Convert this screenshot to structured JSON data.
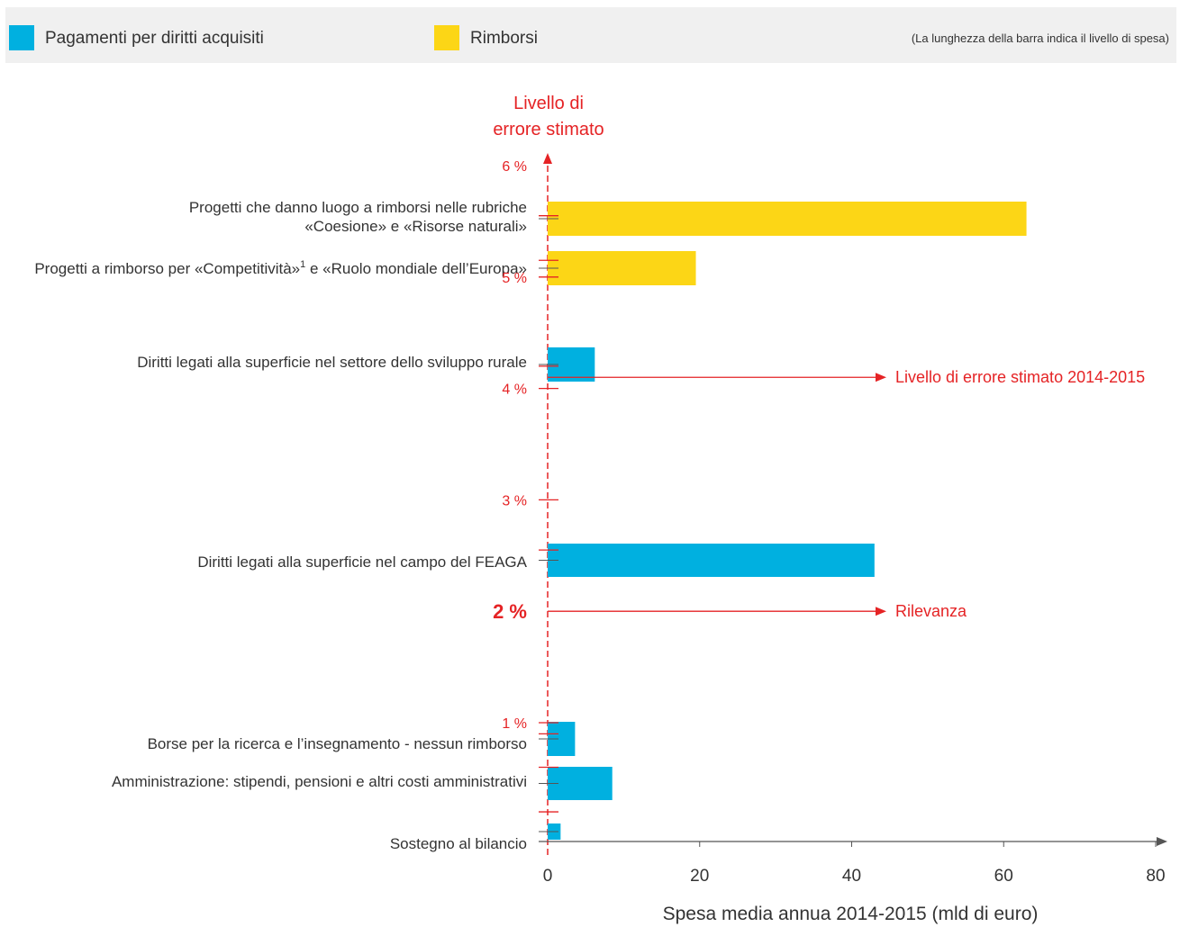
{
  "legend": {
    "items": [
      {
        "label": "Pagamenti per diritti acquisiti",
        "color": "#00b0e0"
      },
      {
        "label": "Rimborsi",
        "color": "#fcd616"
      }
    ],
    "note": "(La lunghezza della barra indica il livello di spesa)"
  },
  "colors": {
    "error_axis": "#e52325",
    "axis": "#555555",
    "text": "#333333",
    "legend_band": "#f0f0f0"
  },
  "chart_data": {
    "type": "bar",
    "orientation": "horizontal",
    "x_axis": {
      "label": "Spesa media annua 2014-2015 (mld di euro)",
      "range": [
        0,
        80
      ],
      "ticks": [
        "0",
        "20",
        "40",
        "60",
        "80"
      ]
    },
    "y_axis": {
      "label_line1": "Livello di",
      "label_line2": "errore stimato",
      "range": [
        0,
        6
      ],
      "ticks": [
        {
          "value": 6,
          "label": "6 %"
        },
        {
          "value": 5,
          "label": "5 %"
        },
        {
          "value": 4,
          "label": "4 %"
        },
        {
          "value": 3,
          "label": "3 %"
        },
        {
          "value": 1,
          "label": "1 %"
        }
      ],
      "highlight": {
        "value": 2,
        "label": "2 %"
      }
    },
    "bars": [
      {
        "category_line1": "Progetti che danno luogo a rimborsi nelle rubriche",
        "category_line2": "«Coesione» e «Risorse naturali»",
        "value": 63,
        "error_level": 5.55,
        "series": "Rimborsi"
      },
      {
        "category_line1": "Progetti a rimborso per «Competitività»",
        "superscript": "1",
        "category_line1_cont": " e «Ruolo mondiale dell’Europa»",
        "value": 19.5,
        "error_level": 5.15,
        "series": "Rimborsi"
      },
      {
        "category_line1": "Diritti legati alla superficie nel settore dello sviluppo rurale",
        "value": 6.2,
        "error_level": 4.2,
        "series": "Pagamenti per diritti acquisiti"
      },
      {
        "category_line1": "Diritti legati alla superficie nel campo del FEAGA",
        "value": 43,
        "error_level": 2.55,
        "series": "Pagamenti per diritti acquisiti"
      },
      {
        "category_line1": "Borse per la ricerca e l’insegnamento - nessun rimborso",
        "value": 3.6,
        "error_level": 0.9,
        "series": "Pagamenti per diritti acquisiti"
      },
      {
        "category_line1": "Amministrazione: stipendi, pensioni e altri costi amministrativi",
        "value": 8.5,
        "error_level": 0.6,
        "series": "Pagamenti per diritti acquisiti"
      },
      {
        "category_line1": "Sostegno al bilancio",
        "value": 1.7,
        "error_level": 0.2,
        "series": "Pagamenti per diritti acquisiti"
      }
    ],
    "reference_lines": [
      {
        "value": 4.1,
        "label": "Livello di errore stimato 2014-2015"
      },
      {
        "value": 2,
        "label": "Rilevanza"
      }
    ]
  }
}
